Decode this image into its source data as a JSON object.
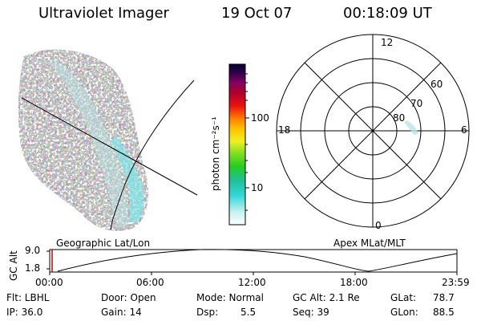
{
  "header": {
    "instrument": "Ultraviolet Imager",
    "date": "19 Oct 07",
    "time": "00:18:09 UT"
  },
  "colorbar": {
    "units_label": "photon cm⁻²s⁻¹",
    "ticks": [
      "100",
      "10"
    ]
  },
  "polar_plot": {
    "local_time_labels": {
      "top": "12",
      "right": "6",
      "bottom": "0",
      "left": "18"
    },
    "lat_labels": [
      "60",
      "70",
      "80"
    ]
  },
  "timeline": {
    "left_title": "Geographic Lat/Lon",
    "right_title": "Apex MLat/MLT",
    "axis_title": "GC Alt",
    "y_ticks": [
      "9.0",
      "1.8"
    ],
    "x_ticks": [
      "00:00",
      "06:00",
      "12:00",
      "18:00",
      "23:59"
    ]
  },
  "info": {
    "filter": "Flt: LBHL",
    "ip": "IP: 36.0",
    "door": "Door: Open",
    "gain": "Gain: 14",
    "mode": "Mode: Normal",
    "dsp_label": "Dsp:",
    "dsp_value": "5.5",
    "gc_alt": "GC Alt: 2.1 Re",
    "seq": "Seq: 39",
    "glat_label": "GLat:",
    "glat_value": "78.7",
    "glon_label": "GLon:",
    "glon_value": "88.5"
  },
  "colors": {
    "aurora_faint": "#d6e6e6",
    "aurora_mid": "#b9dede",
    "aurora_bright": "#7fe6ea",
    "timeline_marker": "#cc0000"
  }
}
